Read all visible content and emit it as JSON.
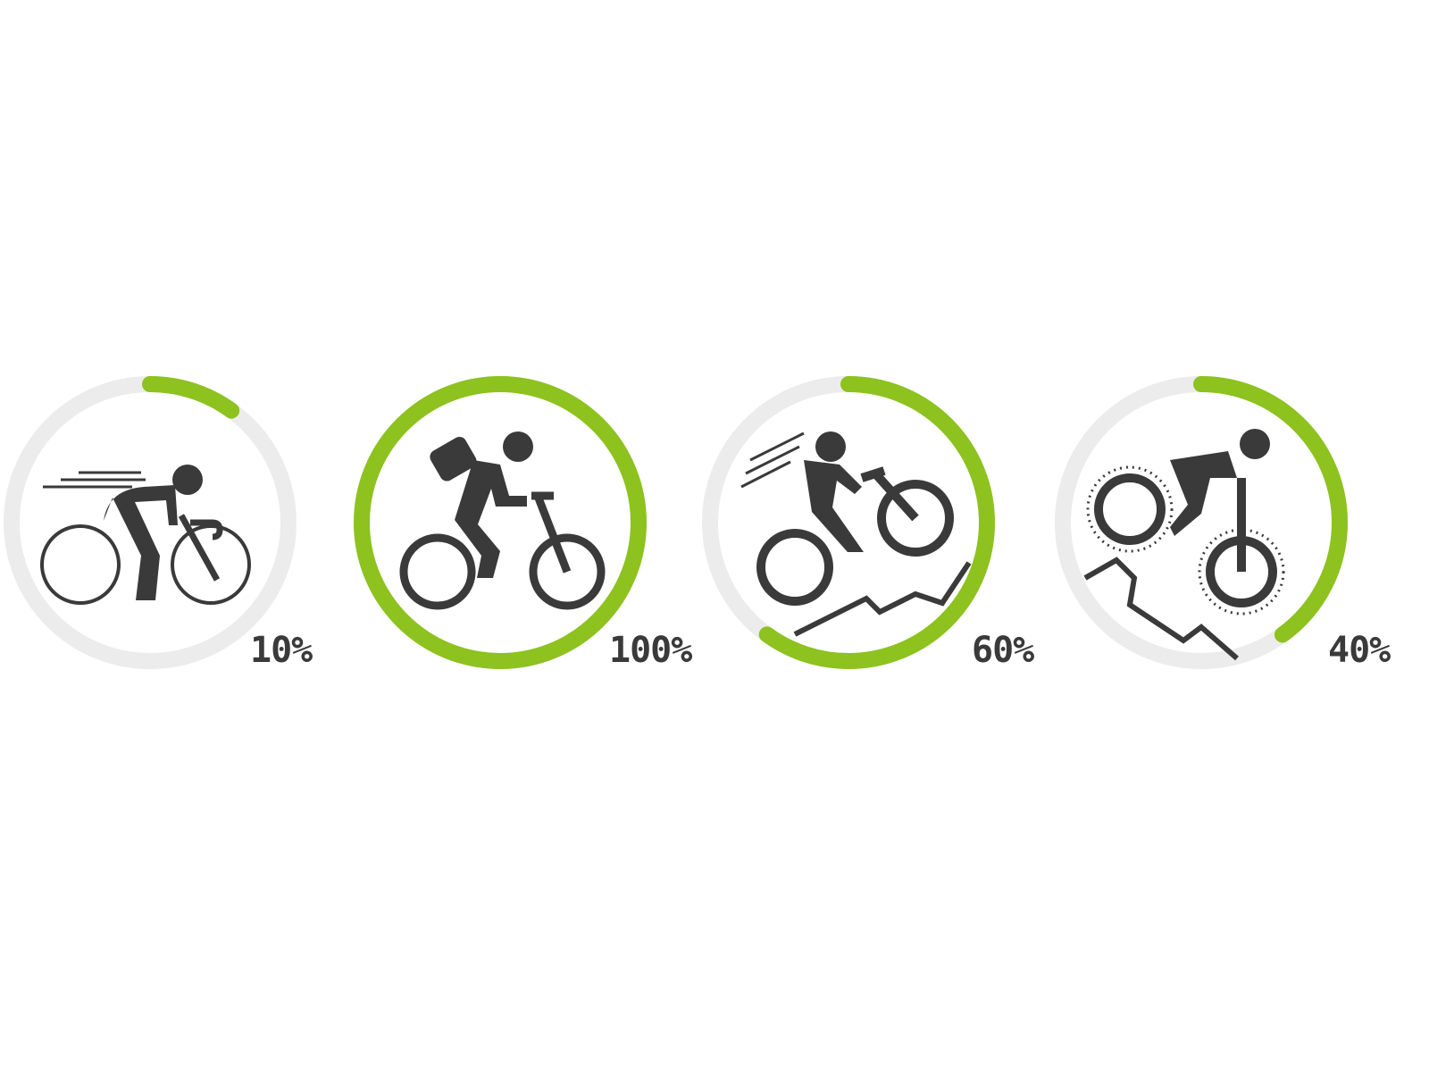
{
  "colors": {
    "progress": "#8dc21f",
    "track": "#ececec",
    "icon": "#3a3a3a"
  },
  "gauges": [
    {
      "icon": "road-cyclist-icon",
      "value": 10,
      "label": "10%"
    },
    {
      "icon": "commuter-cyclist-backpack-icon",
      "value": 100,
      "label": "100%"
    },
    {
      "icon": "trail-cyclist-uphill-icon",
      "value": 60,
      "label": "60%"
    },
    {
      "icon": "downhill-mountain-bike-icon",
      "value": 40,
      "label": "40%"
    }
  ]
}
